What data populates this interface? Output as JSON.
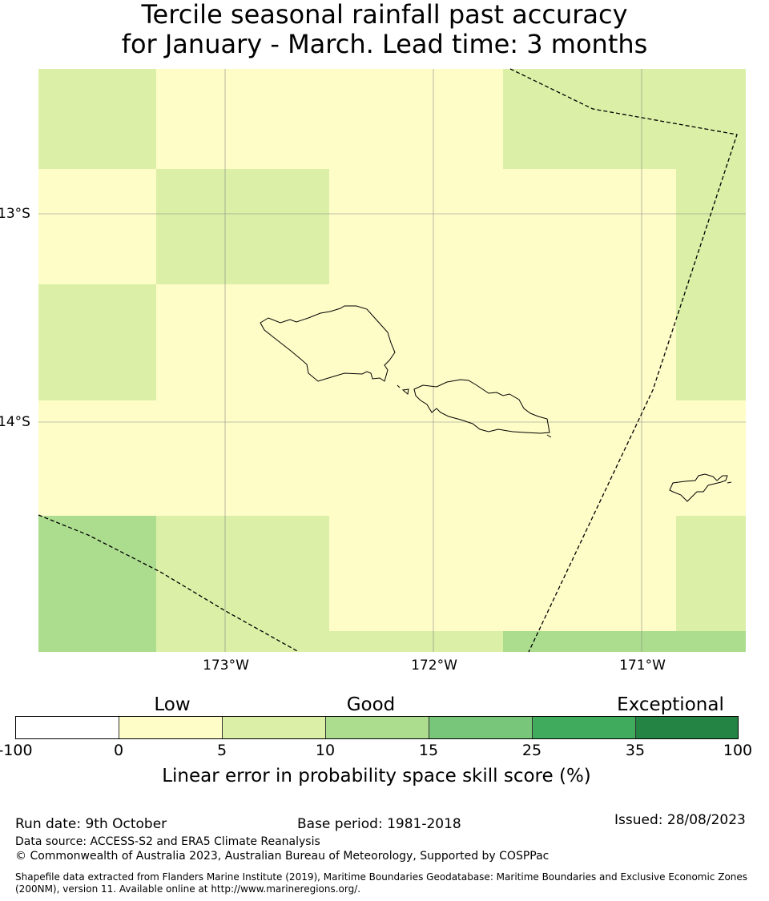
{
  "title": {
    "line1": "Tercile seasonal rainfall past accuracy",
    "line2": "for January - March. Lead time: 3 months"
  },
  "map": {
    "lat_labels": [
      "13°S",
      "14°S"
    ],
    "lon_labels": [
      "173°W",
      "172°W",
      "171°W"
    ],
    "colors": {
      "low": "#fefdc8",
      "mid": "#dbefa6",
      "good": "#acdd8e",
      "coast": "#000000",
      "grid": "#888888"
    }
  },
  "legend": {
    "categories": [
      "Low",
      "Good",
      "Exceptional"
    ],
    "ticks": [
      "-100",
      "0",
      "5",
      "10",
      "15",
      "25",
      "35",
      "100"
    ],
    "colors": [
      "#ffffff",
      "#fefdc8",
      "#dbefa6",
      "#acdd8e",
      "#78c679",
      "#41ab5d",
      "#238443"
    ],
    "label": "Linear error in probability space skill score (%)"
  },
  "footer": {
    "run_date": "Run date: 9th October",
    "base_period": "Base period: 1981-2018",
    "issued": "Issued: 28/08/2023",
    "data_source": "Data source: ACCESS-S2 and ERA5 Climate Reanalysis",
    "copyright": "© Commonwealth of Australia 2023, Australian Bureau of Meteorology, Supported by COSPPac",
    "shapefile": "Shapefile data extracted from Flanders Marine Institute (2019), Maritime Boundaries Geodatabase: Maritime Boundaries and Exclusive Economic Zones (200NM), version 11. Available online at http://www.marineregions.org/."
  }
}
